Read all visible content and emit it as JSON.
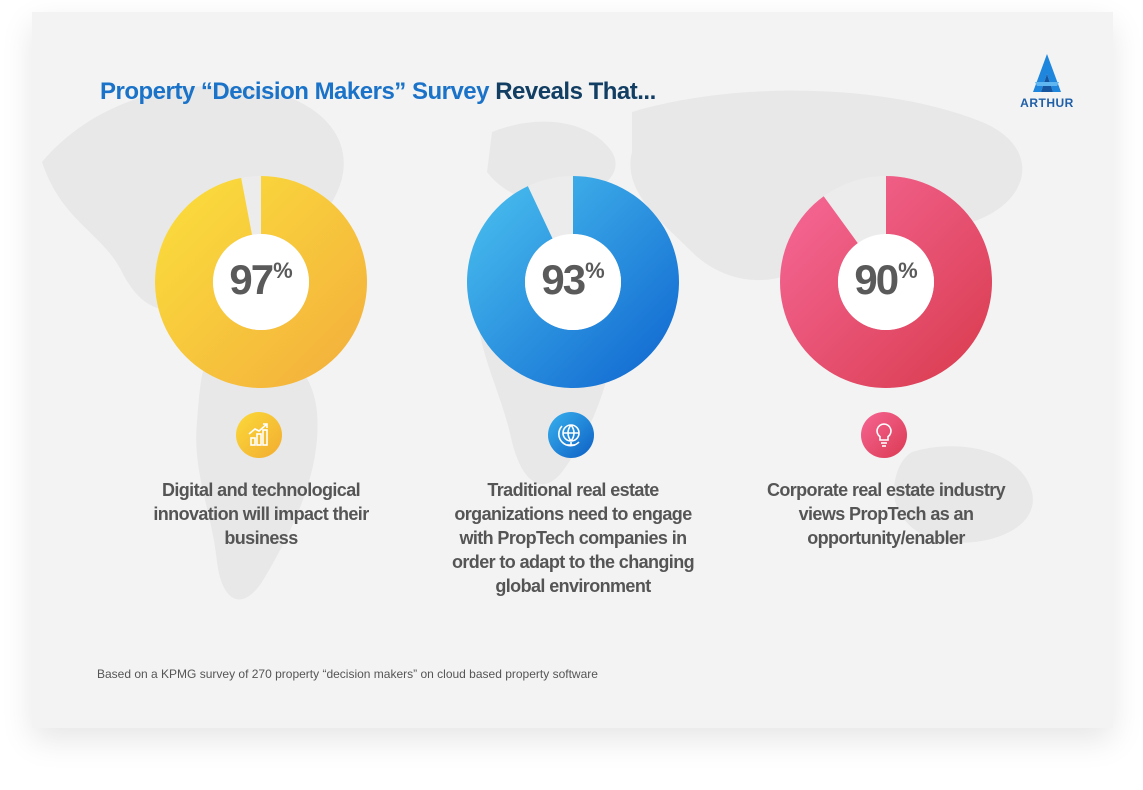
{
  "header": {
    "title_part1": "Property “Decision Makers” Survey",
    "title_part2": "Reveals That..."
  },
  "logo": {
    "text": "ARTHUR",
    "icon": "arthur-logo-icon"
  },
  "colors": {
    "yellow": "#f7c42a",
    "blue": "#1f86dd",
    "red": "#e2415c",
    "remainder": "#ececec"
  },
  "chart_data": {
    "type": "pie",
    "categories": [
      "Digital and technological innovation will impact their business",
      "Traditional real estate organizations need to engage with PropTech companies in order to adapt to the changing global environment",
      "Corporate real estate industry views PropTech as an opportunity/enabler"
    ],
    "values": [
      97,
      93,
      90
    ],
    "unit": "%"
  },
  "stats": [
    {
      "num": "97",
      "sign": "%",
      "icon": "growth-chart-icon",
      "desc": "Digital and technological innovation will impact their business"
    },
    {
      "num": "93",
      "sign": "%",
      "icon": "globe-icon",
      "desc": "Traditional real estate organizations need to engage with PropTech companies in order to adapt to the changing global environment"
    },
    {
      "num": "90",
      "sign": "%",
      "icon": "lightbulb-icon",
      "desc": "Corporate real estate industry views PropTech as an opportunity/enabler"
    }
  ],
  "footer": {
    "note": "Based on a KPMG survey of 270 property “decision makers” on cloud based property software"
  }
}
